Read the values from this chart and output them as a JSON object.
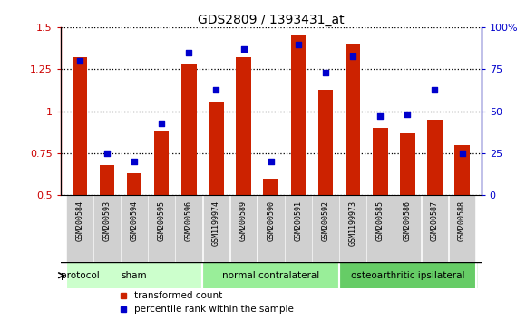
{
  "title": "GDS2809 / 1393431_at",
  "samples": [
    "GSM200584",
    "GSM200593",
    "GSM200594",
    "GSM200595",
    "GSM200596",
    "GSM1199974",
    "GSM200589",
    "GSM200590",
    "GSM200591",
    "GSM200592",
    "GSM1199973",
    "GSM200585",
    "GSM200586",
    "GSM200587",
    "GSM200588"
  ],
  "transformed_count": [
    1.32,
    0.68,
    0.63,
    0.88,
    1.28,
    1.05,
    1.32,
    0.6,
    1.45,
    1.13,
    1.4,
    0.9,
    0.87,
    0.95,
    0.8
  ],
  "percentile_rank": [
    80,
    25,
    20,
    43,
    85,
    63,
    87,
    20,
    90,
    73,
    83,
    47,
    48,
    63,
    25
  ],
  "groups": [
    {
      "label": "sham",
      "start": 0,
      "end": 5,
      "color": "#ccffcc"
    },
    {
      "label": "normal contralateral",
      "start": 5,
      "end": 10,
      "color": "#99ee99"
    },
    {
      "label": "osteoarthritic ipsilateral",
      "start": 10,
      "end": 15,
      "color": "#66cc66"
    }
  ],
  "bar_color_red": "#cc2200",
  "marker_color_blue": "#0000cc",
  "ylim_left": [
    0.5,
    1.5
  ],
  "ylim_right": [
    0,
    100
  ],
  "yticks_left": [
    0.5,
    0.75,
    1.0,
    1.25,
    1.5
  ],
  "ytick_left_labels": [
    "0.5",
    "0.75",
    "1",
    "1.25",
    "1.5"
  ],
  "yticks_right": [
    0,
    25,
    50,
    75,
    100
  ],
  "ytick_right_labels": [
    "0",
    "25",
    "50",
    "75",
    "100%"
  ],
  "legend_items": [
    {
      "label": "transformed count",
      "color": "#cc2200"
    },
    {
      "label": "percentile rank within the sample",
      "color": "#0000cc"
    }
  ],
  "protocol_label": "protocol",
  "bar_width": 0.55,
  "plot_bg": "#ffffff",
  "xtick_bg": "#d0d0d0",
  "grid_color": "#000000",
  "n_samples": 15
}
